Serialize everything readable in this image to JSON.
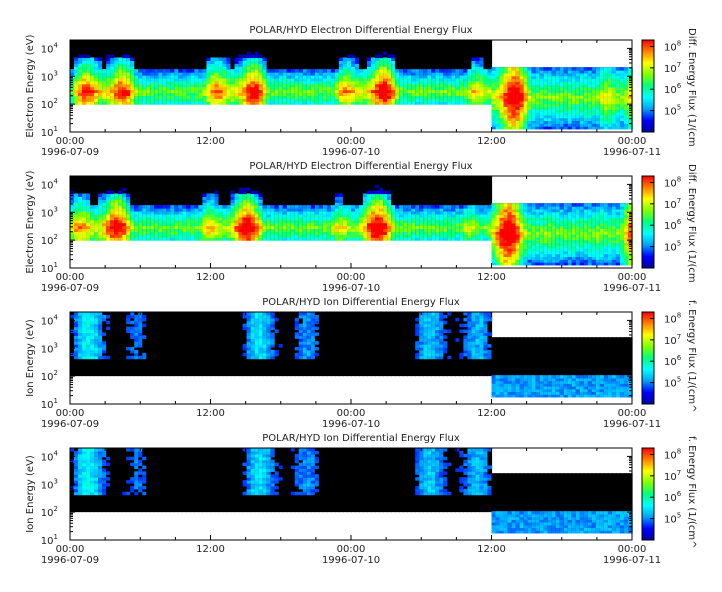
{
  "colors": {
    "background": "#ffffff",
    "axis": "#000000",
    "nodata": "#000000",
    "colormap": [
      "#0000a0",
      "#0000ff",
      "#00a0ff",
      "#00ffff",
      "#00ff80",
      "#80ff00",
      "#ffff00",
      "#ff8000",
      "#ff0000"
    ]
  },
  "chart_data": [
    {
      "type": "heatmap",
      "title": "POLAR/HYD  Electron Differential Energy Flux",
      "ylabel": "Electron Energy (eV)",
      "colorbar_label": "Diff. Energy Flux (1/(cm",
      "y_ticks": [
        "10",
        "10",
        "10",
        "10"
      ],
      "y_exponents": [
        "1",
        "2",
        "3",
        "4"
      ],
      "ylim": [
        10,
        20000
      ],
      "yscale": "log",
      "x_ticks": [
        "00:00",
        "12:00",
        "00:00",
        "12:00",
        "00:00"
      ],
      "x_dates": [
        "1996-07-09",
        "1996-07-10",
        "1996-07-11"
      ],
      "xlim_hours": [
        0,
        48
      ],
      "cbar_ticks": [
        "10",
        "10",
        "10",
        "10"
      ],
      "cbar_exponents": [
        "5",
        "6",
        "7",
        "8"
      ],
      "clim": [
        10000,
        200000000
      ],
      "species": "electron"
    },
    {
      "type": "heatmap",
      "title": "POLAR/HYD  Electron Differential Energy Flux",
      "ylabel": "Electron Energy (eV)",
      "colorbar_label": "Diff. Energy Flux (1/(cm",
      "y_ticks": [
        "10",
        "10",
        "10",
        "10"
      ],
      "y_exponents": [
        "1",
        "2",
        "3",
        "4"
      ],
      "ylim": [
        10,
        20000
      ],
      "yscale": "log",
      "x_ticks": [
        "00:00",
        "12:00",
        "00:00",
        "12:00",
        "00:00"
      ],
      "x_dates": [
        "1996-07-09",
        "1996-07-10",
        "1996-07-11"
      ],
      "xlim_hours": [
        0,
        48
      ],
      "cbar_ticks": [
        "10",
        "10",
        "10",
        "10"
      ],
      "cbar_exponents": [
        "5",
        "6",
        "7",
        "8"
      ],
      "clim": [
        10000,
        200000000
      ],
      "species": "electron"
    },
    {
      "type": "heatmap",
      "title": "POLAR/HYD  Ion Differential Energy Flux",
      "ylabel": "Ion Energy (eV)",
      "colorbar_label": "f. Energy Flux (1/(cm^",
      "y_ticks": [
        "10",
        "10",
        "10",
        "10"
      ],
      "y_exponents": [
        "1",
        "2",
        "3",
        "4"
      ],
      "ylim": [
        10,
        20000
      ],
      "yscale": "log",
      "x_ticks": [
        "00:00",
        "12:00",
        "00:00",
        "12:00",
        "00:00"
      ],
      "x_dates": [
        "1996-07-09",
        "1996-07-10",
        "1996-07-11"
      ],
      "xlim_hours": [
        0,
        48
      ],
      "cbar_ticks": [
        "10",
        "10",
        "10",
        "10"
      ],
      "cbar_exponents": [
        "5",
        "6",
        "7",
        "8"
      ],
      "clim": [
        10000,
        200000000
      ],
      "species": "ion"
    },
    {
      "type": "heatmap",
      "title": "POLAR/HYD  Ion Differential Energy Flux",
      "ylabel": "Ion Energy (eV)",
      "colorbar_label": "f. Energy Flux (1/(cm^",
      "y_ticks": [
        "10",
        "10",
        "10",
        "10"
      ],
      "y_exponents": [
        "1",
        "2",
        "3",
        "4"
      ],
      "ylim": [
        10,
        20000
      ],
      "yscale": "log",
      "x_ticks": [
        "00:00",
        "12:00",
        "00:00",
        "12:00",
        "00:00"
      ],
      "x_dates": [
        "1996-07-09",
        "1996-07-10",
        "1996-07-11"
      ],
      "xlim_hours": [
        0,
        48
      ],
      "cbar_ticks": [
        "10",
        "10",
        "10",
        "10"
      ],
      "cbar_exponents": [
        "5",
        "6",
        "7",
        "8"
      ],
      "clim": [
        10000,
        200000000
      ],
      "species": "ion"
    }
  ]
}
